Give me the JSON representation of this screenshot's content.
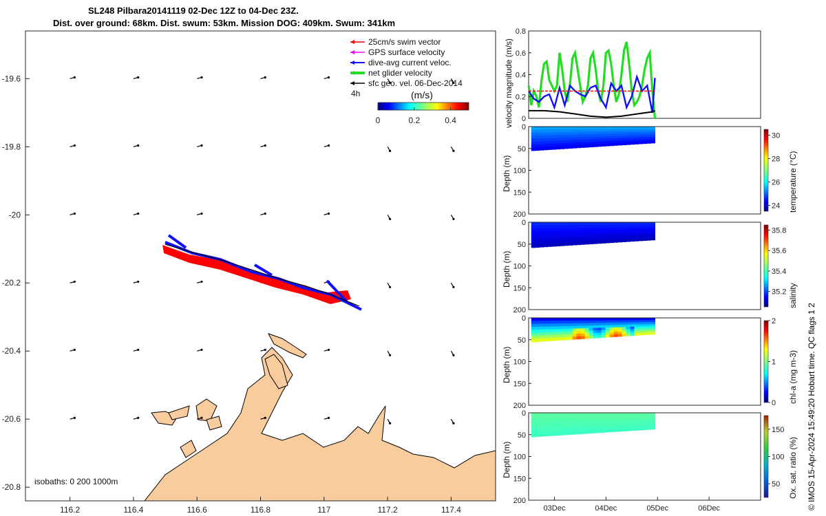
{
  "header": {
    "title_line1": "SL248 Pilbara20141119 02-Dec 12Z to 04-Dec 23Z.",
    "title_line2": "Dist. over ground: 68km. Dist. swum: 53km. Mission DOG: 409km. Swum: 341km"
  },
  "copyright": "© IMOS 15-Apr-2024 15:49:20 Hobart time. QC flags 1  2",
  "colors": {
    "land": "#f9cc9d",
    "swim_vector": "#ff0000",
    "gps_velocity": "#ff00ff",
    "current_velocity": "#1010ff",
    "net_velocity": "#22dd22",
    "geo_velocity": "#000000"
  },
  "chart_data": [
    {
      "type": "map",
      "legend": [
        "25cm/s swim vector",
        "GPS surface velocity",
        "dive-avg current veloc.",
        "net glider velocity",
        "sfc geo. vel. 06-Dec-2014"
      ],
      "legend_note": "4h",
      "colorbar": {
        "label": "(m/s)",
        "ticks": [
          "0",
          "0.2",
          "0.4"
        ],
        "range": [
          0,
          0.5
        ]
      },
      "x_ticks": [
        "116.2",
        "116.4",
        "116.6",
        "116.8",
        "117",
        "117.2",
        "117.4"
      ],
      "y_ticks": [
        "-19.6",
        "-19.8",
        "-20",
        "-20.2",
        "-20.4",
        "-20.6",
        "-20.8"
      ],
      "xlim": [
        116.06,
        117.54
      ],
      "ylim": [
        -20.84,
        -19.46
      ],
      "isobaths": "isobaths: 0    200   1000m",
      "track": [
        {
          "lon": 116.5,
          "lat": -20.09
        },
        {
          "lon": 116.65,
          "lat": -20.13
        },
        {
          "lon": 116.8,
          "lat": -20.17
        },
        {
          "lon": 116.95,
          "lat": -20.21
        },
        {
          "lon": 117.05,
          "lat": -20.24
        },
        {
          "lon": 117.12,
          "lat": -20.27
        }
      ]
    },
    {
      "type": "line",
      "ylabel": "velocity magnitude (m/s)",
      "ylim": [
        0,
        0.8
      ],
      "y_ticks": [
        "0",
        "0.2",
        "0.4",
        "0.6",
        "0.8"
      ],
      "x_ticks": [
        "03Dec",
        "04Dec",
        "05Dec",
        "06Dec"
      ],
      "xlim": [
        2.5,
        7.0
      ],
      "series": [
        {
          "color": "green",
          "x": [
            2.5,
            2.55,
            2.6,
            2.65,
            2.7,
            2.75,
            2.8,
            2.85,
            2.9,
            2.95,
            3.0,
            3.05,
            3.1,
            3.15,
            3.2,
            3.25,
            3.3,
            3.35,
            3.4,
            3.45,
            3.5,
            3.55,
            3.6,
            3.65,
            3.7,
            3.75,
            3.8,
            3.85,
            3.9,
            3.95,
            4.0,
            4.05,
            4.1,
            4.15,
            4.2,
            4.25,
            4.3,
            4.35,
            4.4,
            4.45,
            4.5,
            4.55,
            4.6,
            4.65,
            4.7,
            4.75,
            4.8,
            4.85,
            4.9,
            4.95
          ],
          "y": [
            0.3,
            0.12,
            0.25,
            0.2,
            0.1,
            0.35,
            0.5,
            0.52,
            0.35,
            0.3,
            0.25,
            0.3,
            0.6,
            0.45,
            0.25,
            0.15,
            0.3,
            0.55,
            0.6,
            0.45,
            0.3,
            0.15,
            0.2,
            0.3,
            0.55,
            0.6,
            0.45,
            0.25,
            0.15,
            0.3,
            0.6,
            0.62,
            0.5,
            0.3,
            0.15,
            0.22,
            0.4,
            0.62,
            0.7,
            0.5,
            0.25,
            0.12,
            0.15,
            0.2,
            0.3,
            0.45,
            0.55,
            0.6,
            0.25,
            0.0
          ]
        },
        {
          "color": "blue",
          "x": [
            2.5,
            2.6,
            2.7,
            2.8,
            2.9,
            3.0,
            3.1,
            3.2,
            3.3,
            3.4,
            3.5,
            3.6,
            3.7,
            3.8,
            3.9,
            4.0,
            4.1,
            4.2,
            4.3,
            4.4,
            4.5,
            4.6,
            4.7,
            4.8,
            4.9,
            4.95
          ],
          "y": [
            0.25,
            0.18,
            0.15,
            0.2,
            0.22,
            0.1,
            0.28,
            0.12,
            0.3,
            0.25,
            0.22,
            0.2,
            0.28,
            0.3,
            0.18,
            0.1,
            0.32,
            0.25,
            0.3,
            0.1,
            0.2,
            0.38,
            0.25,
            0.3,
            0.05,
            0.37
          ]
        },
        {
          "color": "red",
          "x": [
            2.5,
            4.95
          ],
          "y": [
            0.25,
            0.25
          ]
        },
        {
          "color": "black",
          "x": [
            2.5,
            2.8,
            3.1,
            3.4,
            3.7,
            4.0,
            4.3,
            4.6,
            4.9,
            4.95
          ],
          "y": [
            0.07,
            0.07,
            0.06,
            0.04,
            0.02,
            0.01,
            0.02,
            0.04,
            0.06,
            0.07
          ]
        }
      ]
    },
    {
      "type": "heatmap",
      "ylabel": "Depth (m)",
      "cbar_label": "temperature (°C)",
      "cbar_ticks": [
        "24",
        "26",
        "28",
        "30"
      ],
      "cbar_range": [
        23.5,
        30.5
      ],
      "ylim": [
        0,
        200
      ],
      "y_ticks": [
        "0",
        "50",
        "100",
        "150",
        "200"
      ],
      "surface_value": 25.5,
      "deep_value": 24.3,
      "max_depth": 55
    },
    {
      "type": "heatmap",
      "ylabel": "Depth (m)",
      "cbar_label": "salinity",
      "cbar_ticks": [
        "35.2",
        "35.4",
        "35.6",
        "35.8"
      ],
      "cbar_range": [
        35.05,
        35.85
      ],
      "ylim": [
        0,
        200
      ],
      "y_ticks": [
        "0",
        "50",
        "100",
        "150",
        "200"
      ],
      "surface_value": 35.18,
      "deep_value": 35.1,
      "max_depth": 58
    },
    {
      "type": "heatmap",
      "ylabel": "Depth (m)",
      "cbar_label": "chl-a (mg m-3)",
      "cbar_ticks": [
        "0",
        "1",
        "2"
      ],
      "cbar_range": [
        0,
        2
      ],
      "ylim": [
        0,
        200
      ],
      "y_ticks": [
        "0",
        "50",
        "100",
        "150",
        "200"
      ],
      "surface_value": 0.25,
      "deep_value": 1.2,
      "max_depth": 55
    },
    {
      "type": "heatmap",
      "ylabel": "Depth (m)",
      "cbar_label": "Ox. sat. ratio (%)",
      "cbar_ticks": [
        "50",
        "100",
        "150"
      ],
      "cbar_range": [
        25,
        175
      ],
      "ylim": [
        0,
        200
      ],
      "y_ticks": [
        "0",
        "50",
        "100",
        "150",
        "200"
      ],
      "x_ticks": [
        "03Dec",
        "04Dec",
        "05Dec",
        "06Dec"
      ],
      "surface_value": 95,
      "deep_value": 90,
      "max_depth": 55
    }
  ]
}
